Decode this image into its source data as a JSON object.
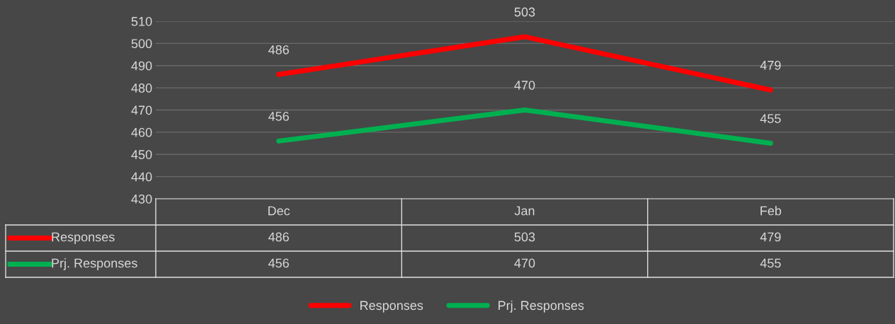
{
  "chart_data": {
    "type": "line",
    "categories": [
      "Dec",
      "Jan",
      "Feb"
    ],
    "series": [
      {
        "name": "Responses",
        "color": "#ff0000",
        "values": [
          486,
          503,
          479
        ],
        "value_labels": [
          "486",
          "503",
          "479"
        ]
      },
      {
        "name": "Prj. Responses",
        "color": "#00b050",
        "values": [
          456,
          470,
          455
        ],
        "value_labels": [
          "456",
          "470",
          "455"
        ]
      }
    ],
    "ylim": [
      430,
      510
    ],
    "yticks": [
      430,
      440,
      450,
      460,
      470,
      480,
      490,
      500,
      510
    ],
    "annotations": [
      "486",
      "503",
      "479",
      "456",
      "470",
      "455"
    ],
    "grid": "y",
    "legend": "bottom",
    "marker": "none",
    "line_style": "solid"
  }
}
